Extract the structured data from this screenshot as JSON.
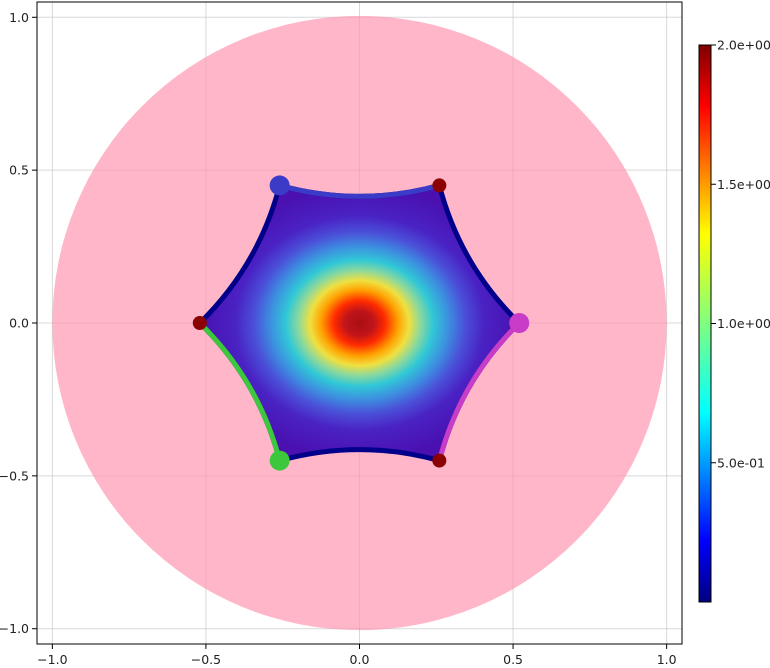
{
  "chart_data": {
    "type": "heatmap",
    "title": "",
    "xlabel": "",
    "ylabel": "",
    "xlim": [
      -1.05,
      1.05
    ],
    "ylim": [
      -1.05,
      1.05
    ],
    "aspect": "equal",
    "grid": true,
    "x_ticks": [
      {
        "value": -1.0,
        "label": "−1.0"
      },
      {
        "value": -0.5,
        "label": "−0.5"
      },
      {
        "value": 0.0,
        "label": "0.0"
      },
      {
        "value": 0.5,
        "label": "0.5"
      },
      {
        "value": 1.0,
        "label": "1.0"
      }
    ],
    "y_ticks": [
      {
        "value": -1.0,
        "label": "−1.0"
      },
      {
        "value": -0.5,
        "label": "−0.5"
      },
      {
        "value": 0.0,
        "label": "0.0"
      },
      {
        "value": 0.5,
        "label": "0.5"
      },
      {
        "value": 1.0,
        "label": "1.0"
      }
    ],
    "disk": {
      "center": [
        0,
        0
      ],
      "radius": 1.0,
      "color": "#ffb6c8"
    },
    "domain": {
      "description_type": "hyperbolic-hexagon",
      "vertices": [
        [
          0.52,
          0.0
        ],
        [
          0.26,
          0.45
        ],
        [
          -0.26,
          0.45
        ],
        [
          -0.52,
          0.0
        ],
        [
          -0.26,
          -0.45
        ],
        [
          0.26,
          -0.45
        ]
      ],
      "boundary_color": "#00008b",
      "heat_peak_value": 2.0,
      "heat_peak_at": [
        0,
        0
      ]
    },
    "highlighted_edges": [
      {
        "from": [
          -0.26,
          0.45
        ],
        "to": [
          0.26,
          0.45
        ],
        "color": "#3b3bc8"
      },
      {
        "from": [
          -0.52,
          0.0
        ],
        "to": [
          -0.26,
          -0.45
        ],
        "color": "#3cc83c"
      },
      {
        "from": [
          0.52,
          0.0
        ],
        "to": [
          0.26,
          -0.45
        ],
        "color": "#c83cc8"
      }
    ],
    "vertex_markers": [
      {
        "point": [
          0.52,
          0.0
        ],
        "color": "#c83cc8",
        "size": "large"
      },
      {
        "point": [
          0.26,
          0.45
        ],
        "color": "#8b0000",
        "size": "small"
      },
      {
        "point": [
          -0.26,
          0.45
        ],
        "color": "#3b3bc8",
        "size": "large"
      },
      {
        "point": [
          -0.52,
          0.0
        ],
        "color": "#8b0000",
        "size": "small"
      },
      {
        "point": [
          -0.26,
          -0.45
        ],
        "color": "#3cc83c",
        "size": "large"
      },
      {
        "point": [
          0.26,
          -0.45
        ],
        "color": "#8b0000",
        "size": "small"
      }
    ],
    "colorbar": {
      "colormap": "jet",
      "range": [
        0.0,
        2.0
      ],
      "ticks": [
        {
          "value": 0.5,
          "label": "5.0e-01"
        },
        {
          "value": 1.0,
          "label": "1.0e+00"
        },
        {
          "value": 1.5,
          "label": "1.5e+00"
        },
        {
          "value": 2.0,
          "label": "2.0e+00"
        }
      ]
    }
  }
}
